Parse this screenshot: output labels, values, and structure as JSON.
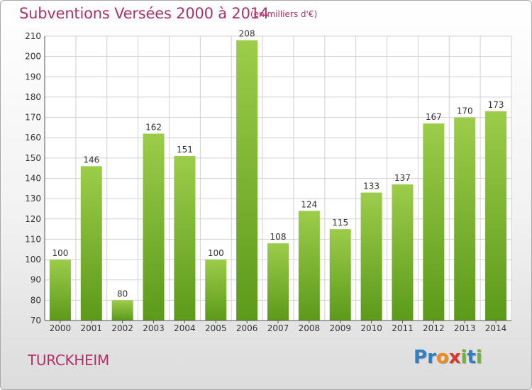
{
  "chart_data": {
    "type": "bar",
    "title": "Subventions Versées 2000 à 2014",
    "subtitle": "(en milliers d'€)",
    "categories": [
      "2000",
      "2001",
      "2002",
      "2003",
      "2004",
      "2005",
      "2006",
      "2007",
      "2008",
      "2009",
      "2010",
      "2011",
      "2012",
      "2013",
      "2014"
    ],
    "values": [
      100,
      146,
      80,
      162,
      151,
      100,
      208,
      108,
      124,
      115,
      133,
      137,
      167,
      170,
      173
    ],
    "ylim": [
      70,
      210
    ],
    "yticks": [
      70,
      80,
      90,
      100,
      110,
      120,
      130,
      140,
      150,
      160,
      170,
      180,
      190,
      200,
      210
    ],
    "grid": true,
    "bar_color_top": "#9ccc4a",
    "bar_color_bottom": "#5c9a1a"
  },
  "footer": {
    "place": "TURCKHEIM",
    "logo_letters": [
      "P",
      "r",
      "o",
      "x",
      "i",
      "t",
      "i"
    ],
    "logo_colors": [
      "#2f7fc1",
      "#2f7fc1",
      "#ef8a1c",
      "#d63a2c",
      "#6ab533",
      "#2f7fc1",
      "#6ab533"
    ]
  },
  "colors": {
    "title": "#b0306a",
    "grid": "#d0d0d0"
  }
}
